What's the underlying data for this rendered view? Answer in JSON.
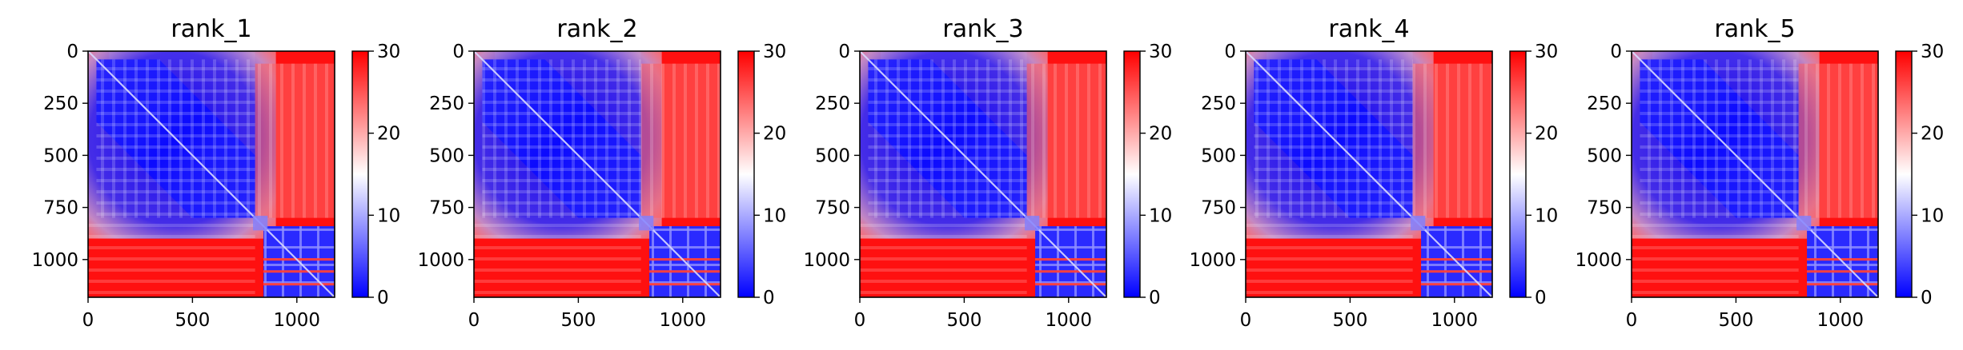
{
  "chart_data": [
    {
      "type": "heatmap",
      "title": "rank_1",
      "x_ticks": [
        "0",
        "500",
        "1000"
      ],
      "y_ticks": [
        "0",
        "250",
        "500",
        "750",
        "1000"
      ],
      "x_tick_values": [
        0,
        500,
        1000
      ],
      "y_tick_values": [
        0,
        250,
        500,
        750,
        1000
      ],
      "xlim": [
        0,
        1181
      ],
      "ylim": [
        1181,
        0
      ],
      "colorbar": {
        "ticks": [
          "0",
          "10",
          "20",
          "30"
        ],
        "tick_values": [
          0,
          10,
          20,
          30
        ],
        "range": [
          0,
          30
        ],
        "colormap": "bwr"
      }
    },
    {
      "type": "heatmap",
      "title": "rank_2",
      "x_ticks": [
        "0",
        "500",
        "1000"
      ],
      "y_ticks": [
        "0",
        "250",
        "500",
        "750",
        "1000"
      ],
      "x_tick_values": [
        0,
        500,
        1000
      ],
      "y_tick_values": [
        0,
        250,
        500,
        750,
        1000
      ],
      "xlim": [
        0,
        1181
      ],
      "ylim": [
        1181,
        0
      ],
      "colorbar": {
        "ticks": [
          "0",
          "10",
          "20",
          "30"
        ],
        "tick_values": [
          0,
          10,
          20,
          30
        ],
        "range": [
          0,
          30
        ],
        "colormap": "bwr"
      }
    },
    {
      "type": "heatmap",
      "title": "rank_3",
      "x_ticks": [
        "0",
        "500",
        "1000"
      ],
      "y_ticks": [
        "0",
        "250",
        "500",
        "750",
        "1000"
      ],
      "x_tick_values": [
        0,
        500,
        1000
      ],
      "y_tick_values": [
        0,
        250,
        500,
        750,
        1000
      ],
      "xlim": [
        0,
        1181
      ],
      "ylim": [
        1181,
        0
      ],
      "colorbar": {
        "ticks": [
          "0",
          "10",
          "20",
          "30"
        ],
        "tick_values": [
          0,
          10,
          20,
          30
        ],
        "range": [
          0,
          30
        ],
        "colormap": "bwr"
      }
    },
    {
      "type": "heatmap",
      "title": "rank_4",
      "x_ticks": [
        "0",
        "500",
        "1000"
      ],
      "y_ticks": [
        "0",
        "250",
        "500",
        "750",
        "1000"
      ],
      "x_tick_values": [
        0,
        500,
        1000
      ],
      "y_tick_values": [
        0,
        250,
        500,
        750,
        1000
      ],
      "xlim": [
        0,
        1181
      ],
      "ylim": [
        1181,
        0
      ],
      "colorbar": {
        "ticks": [
          "0",
          "10",
          "20",
          "30"
        ],
        "tick_values": [
          0,
          10,
          20,
          30
        ],
        "range": [
          0,
          30
        ],
        "colormap": "bwr"
      }
    },
    {
      "type": "heatmap",
      "title": "rank_5",
      "x_ticks": [
        "0",
        "500",
        "1000"
      ],
      "y_ticks": [
        "0",
        "250",
        "500",
        "750",
        "1000"
      ],
      "x_tick_values": [
        0,
        500,
        1000
      ],
      "y_tick_values": [
        0,
        250,
        500,
        750,
        1000
      ],
      "xlim": [
        0,
        1181
      ],
      "ylim": [
        1181,
        0
      ],
      "colorbar": {
        "ticks": [
          "0",
          "10",
          "20",
          "30"
        ],
        "tick_values": [
          0,
          10,
          20,
          30
        ],
        "range": [
          0,
          30
        ],
        "colormap": "bwr"
      }
    }
  ],
  "colors": {
    "low": "#0000ff",
    "mid": "#ffffff",
    "high": "#ff0000"
  }
}
